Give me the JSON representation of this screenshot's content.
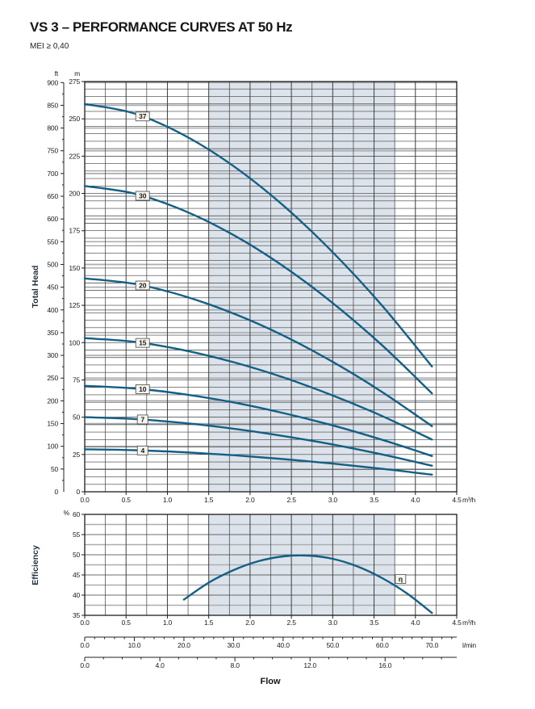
{
  "page": {
    "title": "VS 3 – PERFORMANCE CURVES AT 50 Hz",
    "subtitle": "MEI ≥ 0,40",
    "flow_axis_title": "Flow"
  },
  "colors": {
    "curve": "#135f86",
    "duty_band": "#dce3ea",
    "grid_minor": "#3e3e3e",
    "grid_major": "#1c1c1c",
    "grid_grey": "#a9aeb3",
    "label_box_bg": "#f7f5f0",
    "label_box_border": "#4a4a4a"
  },
  "chart_data": [
    {
      "type": "line",
      "title": "Total Head vs Flow",
      "ylabel": "Total Head",
      "xlabel": "Flow",
      "x_unit": "m³/h",
      "x_ticks": [
        "0.0",
        "0.5",
        "1.0",
        "1.5",
        "2.0",
        "2.5",
        "3.0",
        "3.5",
        "4.0",
        "4.5"
      ],
      "xlim": [
        0,
        4.5
      ],
      "y_axis_m": {
        "unit": "m",
        "ylim": [
          0,
          275
        ],
        "tick_step": 25,
        "ticks": [
          "275",
          "250",
          "225",
          "200",
          "175",
          "150",
          "125",
          "100",
          "75",
          "50",
          "25",
          "0"
        ]
      },
      "y_axis_ft": {
        "unit": "ft",
        "ylim": [
          0,
          900
        ],
        "tick_step": 50,
        "ticks": [
          "900",
          "850",
          "800",
          "750",
          "700",
          "650",
          "600",
          "550",
          "500",
          "450",
          "400",
          "350",
          "300",
          "250",
          "200",
          "150",
          "100",
          "50",
          "0"
        ]
      },
      "duty_band_x": [
        1.5,
        3.75
      ],
      "grid": "minor 5 m black, 50 ft grey, 0.25 m³/h vertical",
      "series": [
        {
          "name": "37",
          "label_x": 0.7,
          "label_y": 251.6,
          "points": [
            [
              0,
              260
            ],
            [
              0.6,
              253.6
            ],
            [
              1.2,
              239.1
            ],
            [
              1.8,
              218.3
            ],
            [
              2.4,
              192.0
            ],
            [
              3.0,
              160.6
            ],
            [
              3.6,
              124.6
            ],
            [
              4.2,
              84
            ]
          ]
        },
        {
          "name": "30",
          "label_x": 0.7,
          "label_y": 198.4,
          "points": [
            [
              0,
              205
            ],
            [
              0.6,
              199.9
            ],
            [
              1.2,
              188.5
            ],
            [
              1.8,
              172.1
            ],
            [
              2.4,
              151.3
            ],
            [
              3.0,
              126.5
            ],
            [
              3.6,
              98.1
            ],
            [
              4.2,
              66
            ]
          ]
        },
        {
          "name": "20",
          "label_x": 0.7,
          "label_y": 138.3,
          "points": [
            [
              0,
              143
            ],
            [
              0.6,
              139.4
            ],
            [
              1.2,
              131.2
            ],
            [
              1.8,
              119.5
            ],
            [
              2.4,
              104.8
            ],
            [
              3.0,
              87.1
            ],
            [
              3.6,
              66.8
            ],
            [
              4.2,
              44
            ]
          ]
        },
        {
          "name": "15",
          "label_x": 0.7,
          "label_y": 99.8,
          "points": [
            [
              0,
              103
            ],
            [
              0.6,
              100.5
            ],
            [
              1.2,
              94.9
            ],
            [
              1.8,
              86.9
            ],
            [
              2.4,
              76.7
            ],
            [
              3.0,
              64.6
            ],
            [
              3.6,
              50.7
            ],
            [
              4.2,
              35
            ]
          ]
        },
        {
          "name": "10",
          "label_x": 0.7,
          "label_y": 68.8,
          "points": [
            [
              0,
              71
            ],
            [
              0.6,
              69.3
            ],
            [
              1.2,
              65.4
            ],
            [
              1.8,
              59.9
            ],
            [
              2.4,
              52.8
            ],
            [
              3.0,
              44.5
            ],
            [
              3.6,
              34.8
            ],
            [
              4.2,
              24
            ]
          ]
        },
        {
          "name": "7",
          "label_x": 0.7,
          "label_y": 48.5,
          "points": [
            [
              0,
              50
            ],
            [
              0.6,
              48.8
            ],
            [
              1.2,
              46.1
            ],
            [
              1.8,
              42.3
            ],
            [
              2.4,
              37.4
            ],
            [
              3.0,
              31.7
            ],
            [
              3.6,
              25.0
            ],
            [
              4.2,
              17.5
            ]
          ]
        },
        {
          "name": "4",
          "label_x": 0.7,
          "label_y": 27.7,
          "points": [
            [
              0,
              28.5
            ],
            [
              0.6,
              27.9
            ],
            [
              1.2,
              26.5
            ],
            [
              1.8,
              24.5
            ],
            [
              2.4,
              21.9
            ],
            [
              3.0,
              18.9
            ],
            [
              3.6,
              15.4
            ],
            [
              4.2,
              11.5
            ]
          ]
        }
      ]
    },
    {
      "type": "line",
      "title": "Efficiency vs Flow",
      "ylabel": "Efficiency",
      "xlabel": "Flow",
      "x_unit": "m³/h",
      "x_ticks": [
        "0.0",
        "0.5",
        "1.0",
        "1.5",
        "2.0",
        "2.5",
        "3.0",
        "3.5",
        "4.0",
        "4.5"
      ],
      "xlim": [
        0,
        4.5
      ],
      "y_axis": {
        "unit": "%",
        "ylim": [
          35,
          60
        ],
        "tick_step": 5,
        "ticks": [
          "60",
          "55",
          "50",
          "45",
          "40",
          "35"
        ]
      },
      "duty_band_x": [
        1.5,
        3.75
      ],
      "series": [
        {
          "name": "η",
          "label_x": 3.82,
          "label_y": 44,
          "points": [
            [
              1.2,
              38.9
            ],
            [
              1.5,
              43.1
            ],
            [
              1.8,
              46.2
            ],
            [
              2.1,
              48.4
            ],
            [
              2.4,
              49.6
            ],
            [
              2.7,
              49.8
            ],
            [
              3.0,
              49.0
            ],
            [
              3.3,
              47.1
            ],
            [
              3.6,
              44.2
            ],
            [
              3.9,
              40.4
            ],
            [
              4.2,
              35.6
            ]
          ]
        }
      ]
    }
  ],
  "flow_scales": {
    "lmin": {
      "unit": "l/min",
      "tick_step": 10,
      "minor_step": 2,
      "max": 75,
      "labels": [
        "0.0",
        "10.0",
        "20.0",
        "30.0",
        "40.0",
        "50.0",
        "60.0",
        "70.0"
      ]
    },
    "usgpm": {
      "unit": "",
      "tick_step": 4,
      "minor_step": 1,
      "max": 19.8,
      "labels": [
        "0.0",
        "4.0",
        "8.0",
        "12.0",
        "16.0"
      ]
    }
  }
}
